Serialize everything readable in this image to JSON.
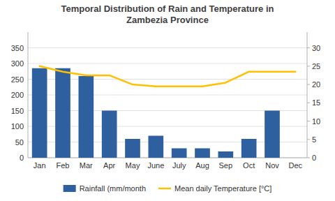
{
  "chart_data": {
    "type": "bar",
    "title": "Temporal Distribution of Rain and Temperature in\nZambezia Province",
    "categories": [
      "Jan",
      "Feb",
      "Mar",
      "Apr",
      "May",
      "June",
      "July",
      "Aug",
      "Sep",
      "Oct",
      "Nov",
      "Dec"
    ],
    "series": [
      {
        "name": "Rainfall (mm/month",
        "type": "bar",
        "color": "#2E5F9E",
        "values": [
          285,
          285,
          260,
          150,
          60,
          70,
          30,
          30,
          20,
          60,
          150,
          0
        ]
      },
      {
        "name": "Mean daily Temperature [°C]",
        "type": "line",
        "axis": "y2",
        "color": "#FFC000",
        "values": [
          25.0,
          23.5,
          22.5,
          22.5,
          20.0,
          19.5,
          19.5,
          19.5,
          20.5,
          23.5,
          23.5,
          23.5
        ]
      }
    ],
    "ylim": [
      0,
      400
    ],
    "yticks": [
      0,
      50,
      100,
      150,
      200,
      250,
      300,
      350
    ],
    "y2lim": [
      0,
      34.3
    ],
    "y2ticks": [
      0,
      5,
      10,
      15,
      20,
      25,
      30
    ],
    "grid": true,
    "legend": "bottom"
  }
}
